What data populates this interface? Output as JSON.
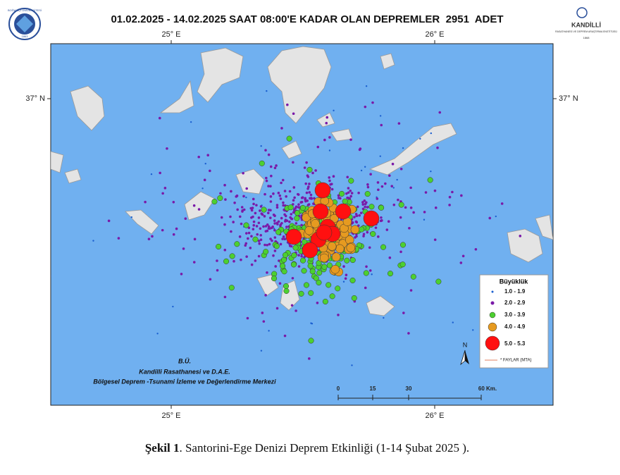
{
  "header": {
    "title": "01.02.2025 - 14.02.2025 SAAT 08:00'E KADAR OLAN DEPREMLER  2951  ADET",
    "left_logo": {
      "name": "BOĞAZİÇİ ÜNİVERSİTESİ",
      "year": "1863"
    },
    "right_logo": {
      "name": "KANDİLLİ",
      "subtitle": "RASATHANESİ VE DEPREM ARAŞTIRMA ENSTİTÜSÜ",
      "year": "1868"
    }
  },
  "map": {
    "lon_labels": [
      "25° E",
      "26° E"
    ],
    "lat_labels": [
      "37° N"
    ],
    "legend": {
      "title": "Büyüklük",
      "items": [
        "1.0 - 1.9",
        "2.0 - 2.9",
        "3.0 - 3.9",
        "4.0 - 4.9",
        "5.0 - 5.3"
      ],
      "fault": "* FAYLAR (MTA)"
    },
    "north": "N",
    "scale": [
      "0",
      "15",
      "30",
      "60 Km."
    ],
    "credits": [
      "B.Ü.",
      "Kandilli Rasathanesi ve D.A.E.",
      "Bölgesel Deprem -Tsunami İzleme ve Değerlendirme Merkezi"
    ]
  },
  "caption": {
    "label": "Şekil 1",
    "text": ". Santorini-Ege Denizi Deprem Etkinliği (1-14 Şubat 2025 )."
  }
}
